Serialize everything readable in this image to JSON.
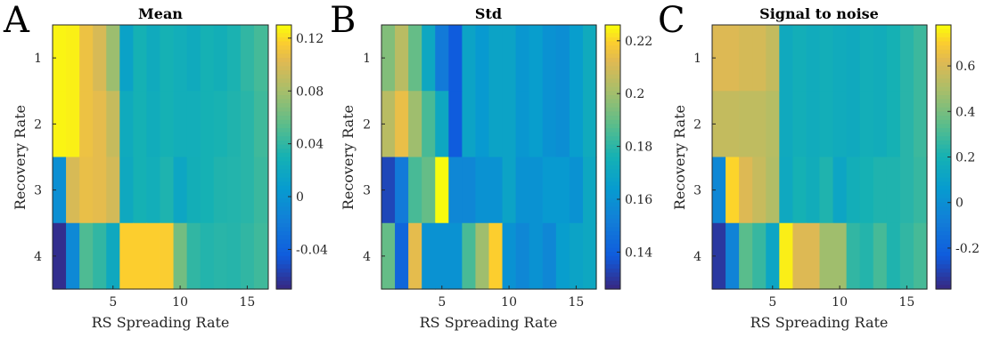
{
  "panel_letters": [
    "A",
    "B",
    "C"
  ],
  "chart_data": [
    {
      "type": "heatmap",
      "title": "Mean",
      "xlabel": "RS Spreading Rate",
      "ylabel": "Recovery Rate",
      "x_ticks": [
        "5",
        "10",
        "15"
      ],
      "y_ticks": [
        "1",
        "2",
        "3",
        "4"
      ],
      "x_range": [
        0.5,
        16.5
      ],
      "y_range": [
        0.5,
        4.5
      ],
      "colorbar": {
        "min": -0.07,
        "max": 0.13,
        "ticks": [
          "0.12",
          "0.08",
          "0.04",
          "0",
          "-0.04"
        ],
        "tick_values": [
          0.12,
          0.08,
          0.04,
          0,
          -0.04
        ]
      },
      "rows": [
        [
          0.128,
          0.127,
          0.11,
          0.1,
          0.077,
          0.013,
          0.03,
          0.022,
          0.03,
          0.026,
          0.022,
          0.03,
          0.027,
          0.032,
          0.04,
          0.047
        ],
        [
          0.128,
          0.127,
          0.11,
          0.106,
          0.093,
          0.022,
          0.03,
          0.024,
          0.03,
          0.026,
          0.026,
          0.03,
          0.031,
          0.034,
          0.037,
          0.045
        ],
        [
          -0.005,
          0.1,
          0.108,
          0.106,
          0.098,
          0.02,
          0.03,
          0.026,
          0.033,
          0.017,
          0.027,
          0.03,
          0.034,
          0.035,
          0.037,
          0.043
        ],
        [
          -0.068,
          -0.01,
          0.05,
          0.04,
          0.02,
          0.118,
          0.118,
          0.118,
          0.117,
          0.063,
          0.04,
          0.035,
          0.037,
          0.036,
          0.04,
          0.045
        ]
      ]
    },
    {
      "type": "heatmap",
      "title": "Std",
      "xlabel": "RS Spreading Rate",
      "ylabel": "Recovery Rate",
      "x_ticks": [
        "5",
        "10",
        "15"
      ],
      "y_ticks": [
        "1",
        "2",
        "3",
        "4"
      ],
      "x_range": [
        0.5,
        16.5
      ],
      "y_range": [
        0.5,
        4.5
      ],
      "colorbar": {
        "min": 0.126,
        "max": 0.226,
        "ticks": [
          "0.22",
          "0.2",
          "0.18",
          "0.16",
          "0.14"
        ],
        "tick_values": [
          0.22,
          0.2,
          0.18,
          0.16,
          0.14
        ]
      },
      "rows": [
        [
          0.195,
          0.205,
          0.19,
          0.17,
          0.15,
          0.138,
          0.168,
          0.163,
          0.168,
          0.168,
          0.162,
          0.165,
          0.16,
          0.158,
          0.165,
          0.172
        ],
        [
          0.205,
          0.215,
          0.2,
          0.185,
          0.17,
          0.138,
          0.168,
          0.163,
          0.168,
          0.168,
          0.162,
          0.165,
          0.16,
          0.158,
          0.165,
          0.172
        ],
        [
          0.133,
          0.15,
          0.185,
          0.19,
          0.226,
          0.155,
          0.155,
          0.16,
          0.16,
          0.168,
          0.16,
          0.16,
          0.163,
          0.163,
          0.16,
          0.17
        ],
        [
          0.19,
          0.142,
          0.214,
          0.16,
          0.16,
          0.16,
          0.185,
          0.2,
          0.22,
          0.16,
          0.155,
          0.16,
          0.155,
          0.165,
          0.168,
          0.17
        ]
      ]
    },
    {
      "type": "heatmap",
      "title": "Signal to noise",
      "xlabel": "RS Spreading Rate",
      "ylabel": "Recovery Rate",
      "x_ticks": [
        "5",
        "10",
        "15"
      ],
      "y_ticks": [
        "1",
        "2",
        "3",
        "4"
      ],
      "x_range": [
        0.5,
        16.5
      ],
      "y_range": [
        0.5,
        4.5
      ],
      "colorbar": {
        "min": -0.38,
        "max": 0.78,
        "ticks": [
          "0.6",
          "0.4",
          "0.2",
          "0",
          "-0.2"
        ],
        "tick_values": [
          0.6,
          0.4,
          0.2,
          0,
          -0.2
        ]
      },
      "rows": [
        [
          0.62,
          0.62,
          0.6,
          0.6,
          0.56,
          0.15,
          0.18,
          0.16,
          0.18,
          0.16,
          0.15,
          0.18,
          0.17,
          0.2,
          0.24,
          0.28
        ],
        [
          0.56,
          0.56,
          0.55,
          0.55,
          0.53,
          0.15,
          0.18,
          0.16,
          0.18,
          0.16,
          0.15,
          0.18,
          0.17,
          0.2,
          0.24,
          0.28
        ],
        [
          -0.04,
          0.72,
          0.62,
          0.57,
          0.52,
          0.14,
          0.2,
          0.17,
          0.22,
          0.12,
          0.18,
          0.2,
          0.22,
          0.22,
          0.24,
          0.27
        ],
        [
          -0.34,
          -0.06,
          0.34,
          0.27,
          0.12,
          0.76,
          0.62,
          0.62,
          0.48,
          0.48,
          0.26,
          0.23,
          0.3,
          0.22,
          0.26,
          0.3
        ]
      ]
    }
  ]
}
